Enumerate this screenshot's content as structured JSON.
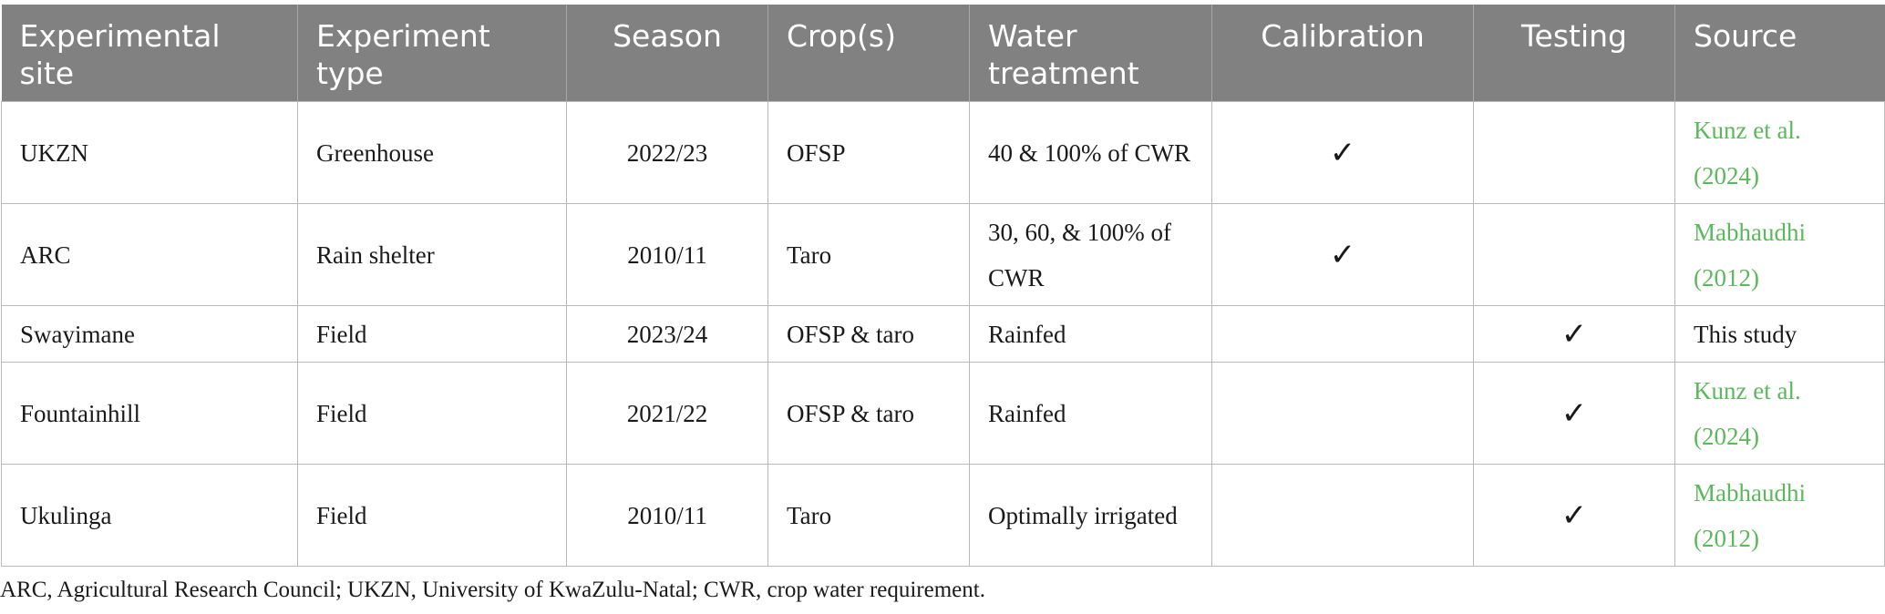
{
  "table": {
    "headers": [
      "Experimental site",
      "Experiment type",
      "Season",
      "Crop(s)",
      "Water treatment",
      "Calibration",
      "Testing",
      "Source"
    ],
    "rows": [
      {
        "site": "UKZN",
        "type": "Greenhouse",
        "season": "2022/23",
        "crops": "OFSP",
        "water": "40 & 100% of CWR",
        "calibration": "✓",
        "testing": "",
        "source": "Kunz et al. (2024)"
      },
      {
        "site": "ARC",
        "type": "Rain shelter",
        "season": "2010/11",
        "crops": "Taro",
        "water": "30, 60, & 100% of CWR",
        "calibration": "✓",
        "testing": "",
        "source": "Mabhaudhi (2012)"
      },
      {
        "site": "Swayimane",
        "type": "Field",
        "season": "2023/24",
        "crops": "OFSP & taro",
        "water": "Rainfed",
        "calibration": "",
        "testing": "✓",
        "source": "This study"
      },
      {
        "site": "Fountainhill",
        "type": "Field",
        "season": "2021/22",
        "crops": "OFSP & taro",
        "water": "Rainfed",
        "calibration": "",
        "testing": "✓",
        "source": "Kunz et al. (2024)"
      },
      {
        "site": "Ukulinga",
        "type": "Field",
        "season": "2010/11",
        "crops": "Taro",
        "water": "Optimally irrigated",
        "calibration": "",
        "testing": "✓",
        "source": "Mabhaudhi (2012)"
      }
    ]
  },
  "footnote": "ARC, Agricultural Research Council; UKZN, University of KwaZulu-Natal; CWR, crop water requirement.",
  "colors": {
    "header_bg": "#808180",
    "header_text": "#ffffff",
    "link": "#5cb85c",
    "border": "#b9b9b9"
  }
}
